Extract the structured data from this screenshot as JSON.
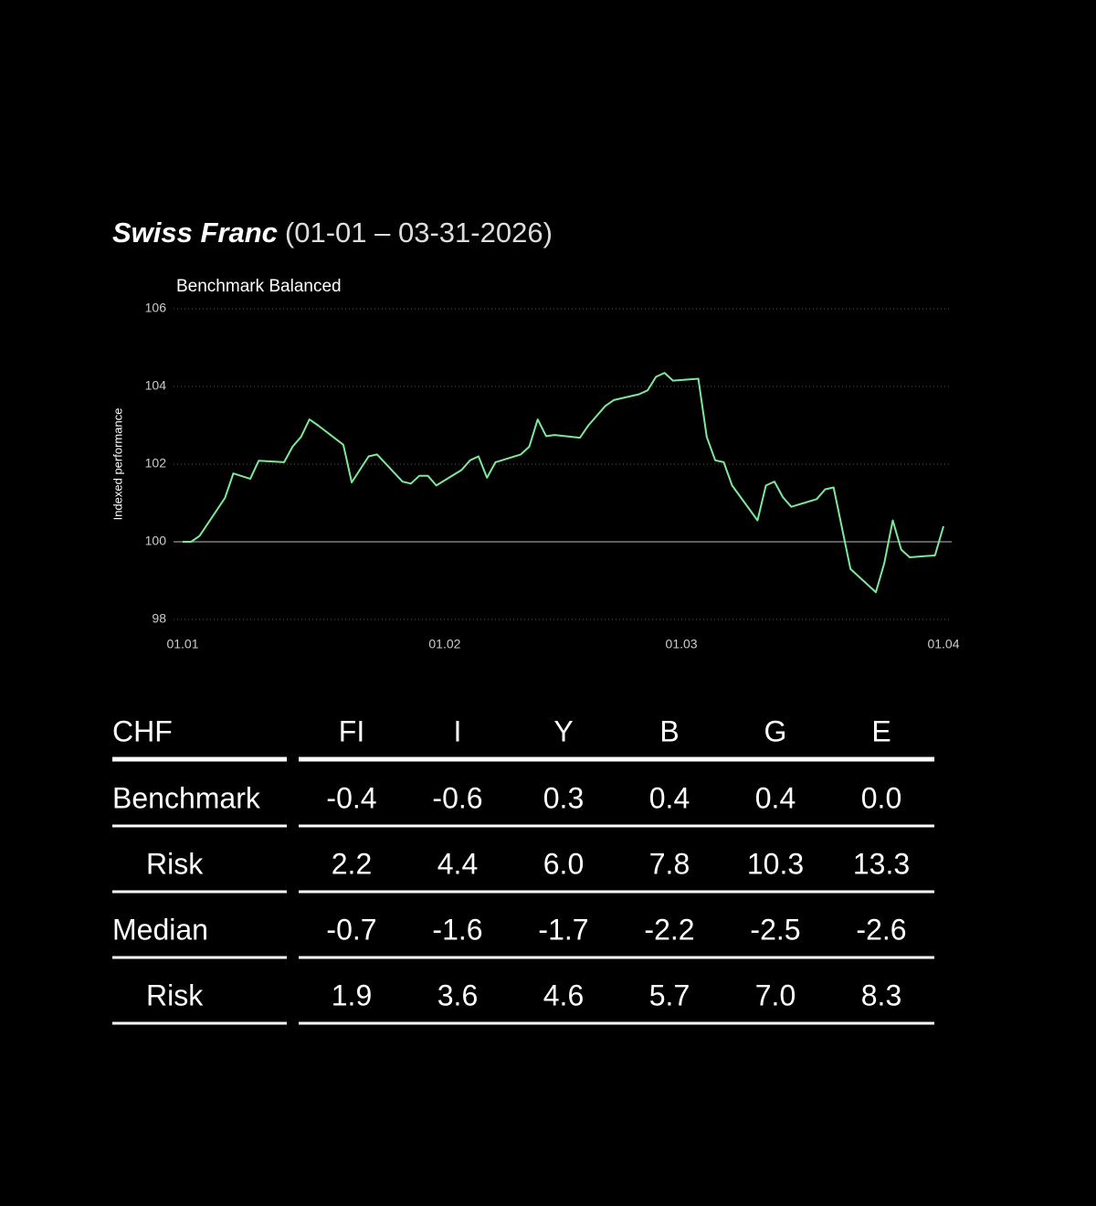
{
  "chart_data": {
    "type": "line",
    "title": "Swiss Franc",
    "period": "(01-01 – 03-31-2026)",
    "subtitle": "Benchmark Balanced",
    "ylabel": "Indexed performance",
    "x": [
      0,
      1,
      2,
      5,
      6,
      8,
      9,
      12,
      13,
      14,
      15,
      16,
      19,
      20,
      22,
      23,
      26,
      27,
      28,
      29,
      30,
      33,
      34,
      35,
      36,
      37,
      40,
      41,
      42,
      43,
      44,
      47,
      48,
      50,
      51,
      54,
      55,
      56,
      57,
      58,
      61,
      62,
      63,
      64,
      65,
      68,
      69,
      70,
      71,
      72,
      75,
      76,
      77,
      79,
      82,
      83,
      84,
      85,
      86,
      89,
      90
    ],
    "values": [
      100.0,
      100.0,
      100.15,
      101.13,
      101.76,
      101.62,
      102.09,
      102.05,
      102.45,
      102.7,
      103.15,
      103.0,
      102.5,
      101.53,
      102.2,
      102.25,
      101.55,
      101.5,
      101.7,
      101.7,
      101.45,
      101.85,
      102.1,
      102.2,
      101.65,
      102.05,
      102.25,
      102.45,
      103.15,
      102.72,
      102.75,
      102.68,
      103.0,
      103.5,
      103.65,
      103.8,
      103.9,
      104.25,
      104.35,
      104.15,
      104.2,
      102.7,
      102.1,
      102.05,
      101.45,
      100.55,
      101.45,
      101.55,
      101.15,
      100.9,
      101.1,
      101.35,
      101.4,
      99.3,
      98.7,
      99.45,
      100.55,
      99.8,
      99.6,
      99.65,
      100.4
    ],
    "color": "#7ee89a",
    "baseline": 100,
    "xlim": [
      0,
      90
    ],
    "xticks": [
      {
        "value": 0,
        "label": "01.01"
      },
      {
        "value": 31,
        "label": "01.02"
      },
      {
        "value": 59,
        "label": "01.03"
      },
      {
        "value": 90,
        "label": "01.04"
      }
    ],
    "ylim": [
      98,
      106
    ],
    "yticks": [
      98,
      100,
      102,
      104,
      106
    ],
    "grid": true
  },
  "table": {
    "header": [
      "CHF",
      "FI",
      "I",
      "Y",
      "B",
      "G",
      "E"
    ],
    "rows": [
      [
        "Benchmark",
        "-0.4",
        "-0.6",
        "0.3",
        "0.4",
        "0.4",
        "0.0"
      ],
      [
        "Risk",
        "2.2",
        "4.4",
        "6.0",
        "7.8",
        "10.3",
        "13.3"
      ],
      [
        "Median",
        "-0.7",
        "-1.6",
        "-1.7",
        "-2.2",
        "-2.5",
        "-2.6"
      ],
      [
        "Risk",
        "1.9",
        "3.6",
        "4.6",
        "5.7",
        "7.0",
        "8.3"
      ]
    ]
  }
}
